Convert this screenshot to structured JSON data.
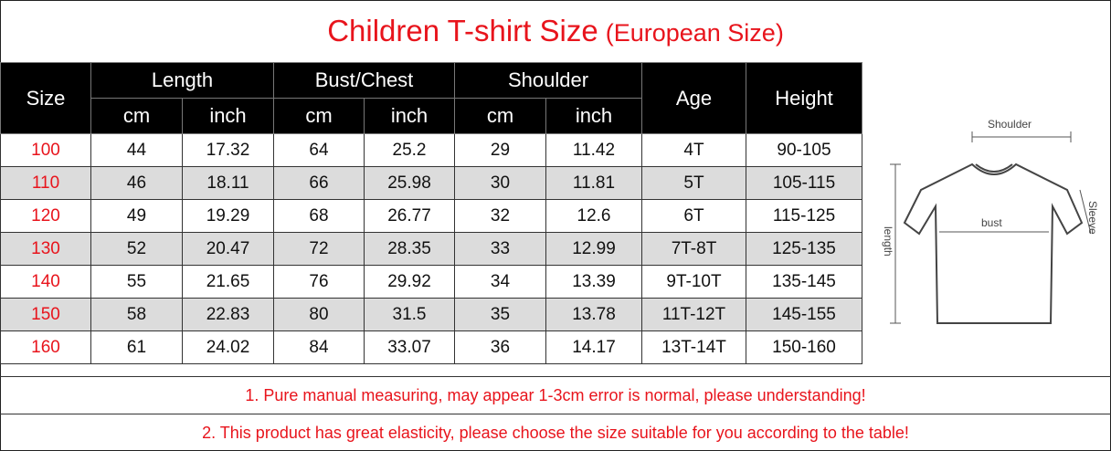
{
  "title": {
    "main": "Children T-shirt Size",
    "sub": "(European Size)"
  },
  "table": {
    "header": {
      "size": "Size",
      "length": "Length",
      "bust": "Bust/Chest",
      "shoulder": "Shoulder",
      "age": "Age",
      "height": "Height",
      "cm": "cm",
      "inch": "inch"
    },
    "rows": [
      {
        "size": "100",
        "len_cm": "44",
        "len_in": "17.32",
        "bust_cm": "64",
        "bust_in": "25.2",
        "sh_cm": "29",
        "sh_in": "11.42",
        "age": "4T",
        "height": "90-105"
      },
      {
        "size": "110",
        "len_cm": "46",
        "len_in": "18.11",
        "bust_cm": "66",
        "bust_in": "25.98",
        "sh_cm": "30",
        "sh_in": "11.81",
        "age": "5T",
        "height": "105-115"
      },
      {
        "size": "120",
        "len_cm": "49",
        "len_in": "19.29",
        "bust_cm": "68",
        "bust_in": "26.77",
        "sh_cm": "32",
        "sh_in": "12.6",
        "age": "6T",
        "height": "115-125"
      },
      {
        "size": "130",
        "len_cm": "52",
        "len_in": "20.47",
        "bust_cm": "72",
        "bust_in": "28.35",
        "sh_cm": "33",
        "sh_in": "12.99",
        "age": "7T-8T",
        "height": "125-135"
      },
      {
        "size": "140",
        "len_cm": "55",
        "len_in": "21.65",
        "bust_cm": "76",
        "bust_in": "29.92",
        "sh_cm": "34",
        "sh_in": "13.39",
        "age": "9T-10T",
        "height": "135-145"
      },
      {
        "size": "150",
        "len_cm": "58",
        "len_in": "22.83",
        "bust_cm": "80",
        "bust_in": "31.5",
        "sh_cm": "35",
        "sh_in": "13.78",
        "age": "11T-12T",
        "height": "145-155"
      },
      {
        "size": "160",
        "len_cm": "61",
        "len_in": "24.02",
        "bust_cm": "84",
        "bust_in": "33.07",
        "sh_cm": "36",
        "sh_in": "14.17",
        "age": "13T-14T",
        "height": "150-160"
      }
    ]
  },
  "diagram": {
    "shoulder": "Shoulder",
    "bust": "bust",
    "length": "length",
    "sleeve": "Sleeve"
  },
  "notes": {
    "note1": "1. Pure manual measuring, may appear 1-3cm error is normal, please understanding!",
    "note2": "2. This product has great elasticity, please choose the size suitable for you according to the table!"
  },
  "colors": {
    "accent": "#e8141c",
    "header_bg": "#000000",
    "row_shade": "#dcdcdc"
  }
}
